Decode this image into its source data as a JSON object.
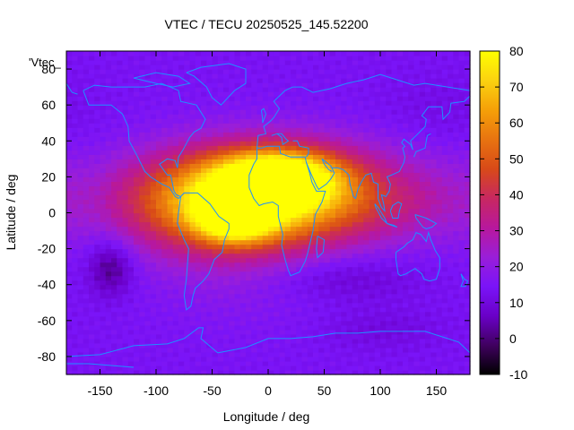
{
  "chart_data": {
    "type": "heatmap",
    "title": "VTEC / TECU 20250525_145.52200",
    "xlabel": "Longitude / deg",
    "ylabel": "Latitude / deg",
    "xlim": [
      -180,
      180
    ],
    "ylim": [
      -90,
      90
    ],
    "xticks": [
      -150,
      -100,
      -50,
      0,
      50,
      100,
      150
    ],
    "yticks": [
      -80,
      -60,
      -40,
      -20,
      0,
      20,
      40,
      60,
      80
    ],
    "colorbar": {
      "range": [
        -10,
        80
      ],
      "ticks": [
        -10,
        0,
        10,
        20,
        30,
        40,
        50,
        60,
        70,
        80
      ]
    },
    "legend_label": "'Vtec_",
    "legend_position": "top-left",
    "grid": false,
    "grid_resolution_deg": {
      "lon": 5,
      "lat": 2.5
    },
    "features": [
      {
        "type": "background",
        "value": 14
      },
      {
        "type": "peak",
        "lon": 10,
        "lat": 20,
        "value": 63,
        "sigma_lon": 35,
        "sigma_lat": 10
      },
      {
        "type": "peak",
        "lon": -30,
        "lat": -2,
        "value": 62,
        "sigma_lon": 22,
        "sigma_lat": 9
      },
      {
        "type": "peak",
        "lon": -10,
        "lat": 10,
        "value": 52,
        "sigma_lon": 60,
        "sigma_lat": 18
      },
      {
        "type": "peak",
        "lon": 30,
        "lat": 10,
        "value": 38,
        "sigma_lon": 90,
        "sigma_lat": 20
      },
      {
        "type": "peak",
        "lon": -60,
        "lat": 5,
        "value": 35,
        "sigma_lon": 60,
        "sigma_lat": 18
      },
      {
        "type": "peak",
        "lon": -20,
        "lat": -25,
        "value": 20,
        "sigma_lon": 60,
        "sigma_lat": 25
      },
      {
        "type": "peak",
        "lon": 110,
        "lat": 5,
        "value": 18,
        "sigma_lon": 45,
        "sigma_lat": 10
      },
      {
        "type": "peak",
        "lon": -140,
        "lat": -30,
        "value": -14,
        "sigma_lon": 14,
        "sigma_lat": 11
      },
      {
        "type": "peak",
        "lon": 60,
        "lat": -35,
        "value": 6,
        "sigma_lon": 50,
        "sigma_lat": 10
      },
      {
        "type": "peak",
        "lon": 150,
        "lat": 55,
        "value": -3,
        "sigma_lon": 40,
        "sigma_lat": 15
      },
      {
        "type": "peak",
        "lon": 100,
        "lat": -65,
        "value": -4,
        "sigma_lon": 40,
        "sigma_lat": 8
      }
    ]
  },
  "colors": {
    "palette": [
      "#000000",
      "#400060",
      "#6a00c8",
      "#7a14f8",
      "#9a1ed8",
      "#b8189c",
      "#c82860",
      "#d84a18",
      "#e87410",
      "#f5a008",
      "#fbd210",
      "#ffff00"
    ],
    "coastline": "#1e90ff"
  }
}
